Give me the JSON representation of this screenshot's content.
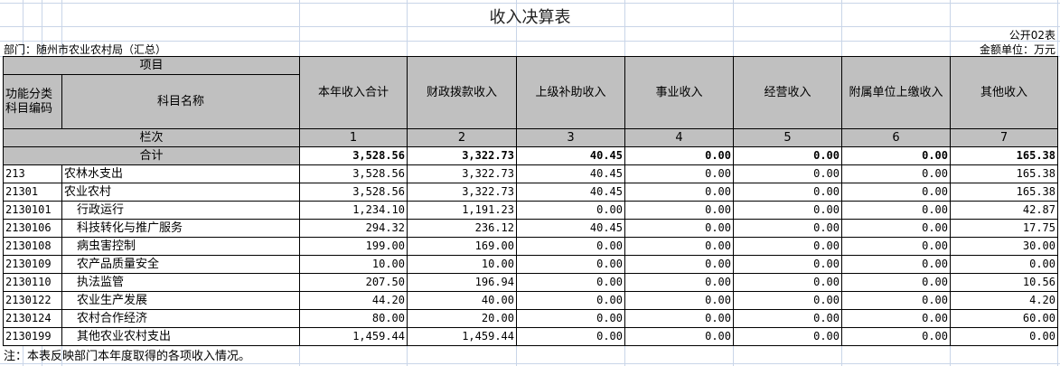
{
  "title": "收入决算表",
  "form_no": "公开02表",
  "department": "部门：随州市农业农村局（汇总）",
  "unit": "金额单位：万元",
  "header": {
    "project": "项目",
    "code": "功能分类科目编码",
    "name": "科目名称",
    "columns": [
      "本年收入合计",
      "财政拨款收入",
      "上级补助收入",
      "事业收入",
      "经营收入",
      "附属单位上缴收入",
      "其他收入"
    ],
    "column_index_label": "栏次",
    "column_index": [
      "1",
      "2",
      "3",
      "4",
      "5",
      "6",
      "7"
    ]
  },
  "total": {
    "label": "合计",
    "values": [
      "3,528.56",
      "3,322.73",
      "40.45",
      "0.00",
      "0.00",
      "0.00",
      "165.38"
    ]
  },
  "rows": [
    {
      "code": "213",
      "name": "农林水支出",
      "indent": false,
      "values": [
        "3,528.56",
        "3,322.73",
        "40.45",
        "0.00",
        "0.00",
        "0.00",
        "165.38"
      ]
    },
    {
      "code": "21301",
      "name": "农业农村",
      "indent": false,
      "values": [
        "3,528.56",
        "3,322.73",
        "40.45",
        "0.00",
        "0.00",
        "0.00",
        "165.38"
      ]
    },
    {
      "code": "2130101",
      "name": "行政运行",
      "indent": true,
      "values": [
        "1,234.10",
        "1,191.23",
        "0.00",
        "0.00",
        "0.00",
        "0.00",
        "42.87"
      ]
    },
    {
      "code": "2130106",
      "name": "科技转化与推广服务",
      "indent": true,
      "values": [
        "294.32",
        "236.12",
        "40.45",
        "0.00",
        "0.00",
        "0.00",
        "17.75"
      ]
    },
    {
      "code": "2130108",
      "name": "病虫害控制",
      "indent": true,
      "values": [
        "199.00",
        "169.00",
        "0.00",
        "0.00",
        "0.00",
        "0.00",
        "30.00"
      ]
    },
    {
      "code": "2130109",
      "name": "农产品质量安全",
      "indent": true,
      "values": [
        "10.00",
        "10.00",
        "0.00",
        "0.00",
        "0.00",
        "0.00",
        "0.00"
      ]
    },
    {
      "code": "2130110",
      "name": "执法监管",
      "indent": true,
      "values": [
        "207.50",
        "196.94",
        "0.00",
        "0.00",
        "0.00",
        "0.00",
        "10.56"
      ]
    },
    {
      "code": "2130122",
      "name": "农业生产发展",
      "indent": true,
      "values": [
        "44.20",
        "40.00",
        "0.00",
        "0.00",
        "0.00",
        "0.00",
        "4.20"
      ]
    },
    {
      "code": "2130124",
      "name": "农村合作经济",
      "indent": true,
      "values": [
        "80.00",
        "20.00",
        "0.00",
        "0.00",
        "0.00",
        "0.00",
        "60.00"
      ]
    },
    {
      "code": "2130199",
      "name": "其他农业农村支出",
      "indent": true,
      "values": [
        "1,459.44",
        "1,459.44",
        "0.00",
        "0.00",
        "0.00",
        "0.00",
        "0.00"
      ]
    }
  ],
  "note": "注：本表反映部门本年度取得的各项收入情况。",
  "colors": {
    "header_bg": "#c0c0c0",
    "gridline": "#c9d5e8"
  }
}
